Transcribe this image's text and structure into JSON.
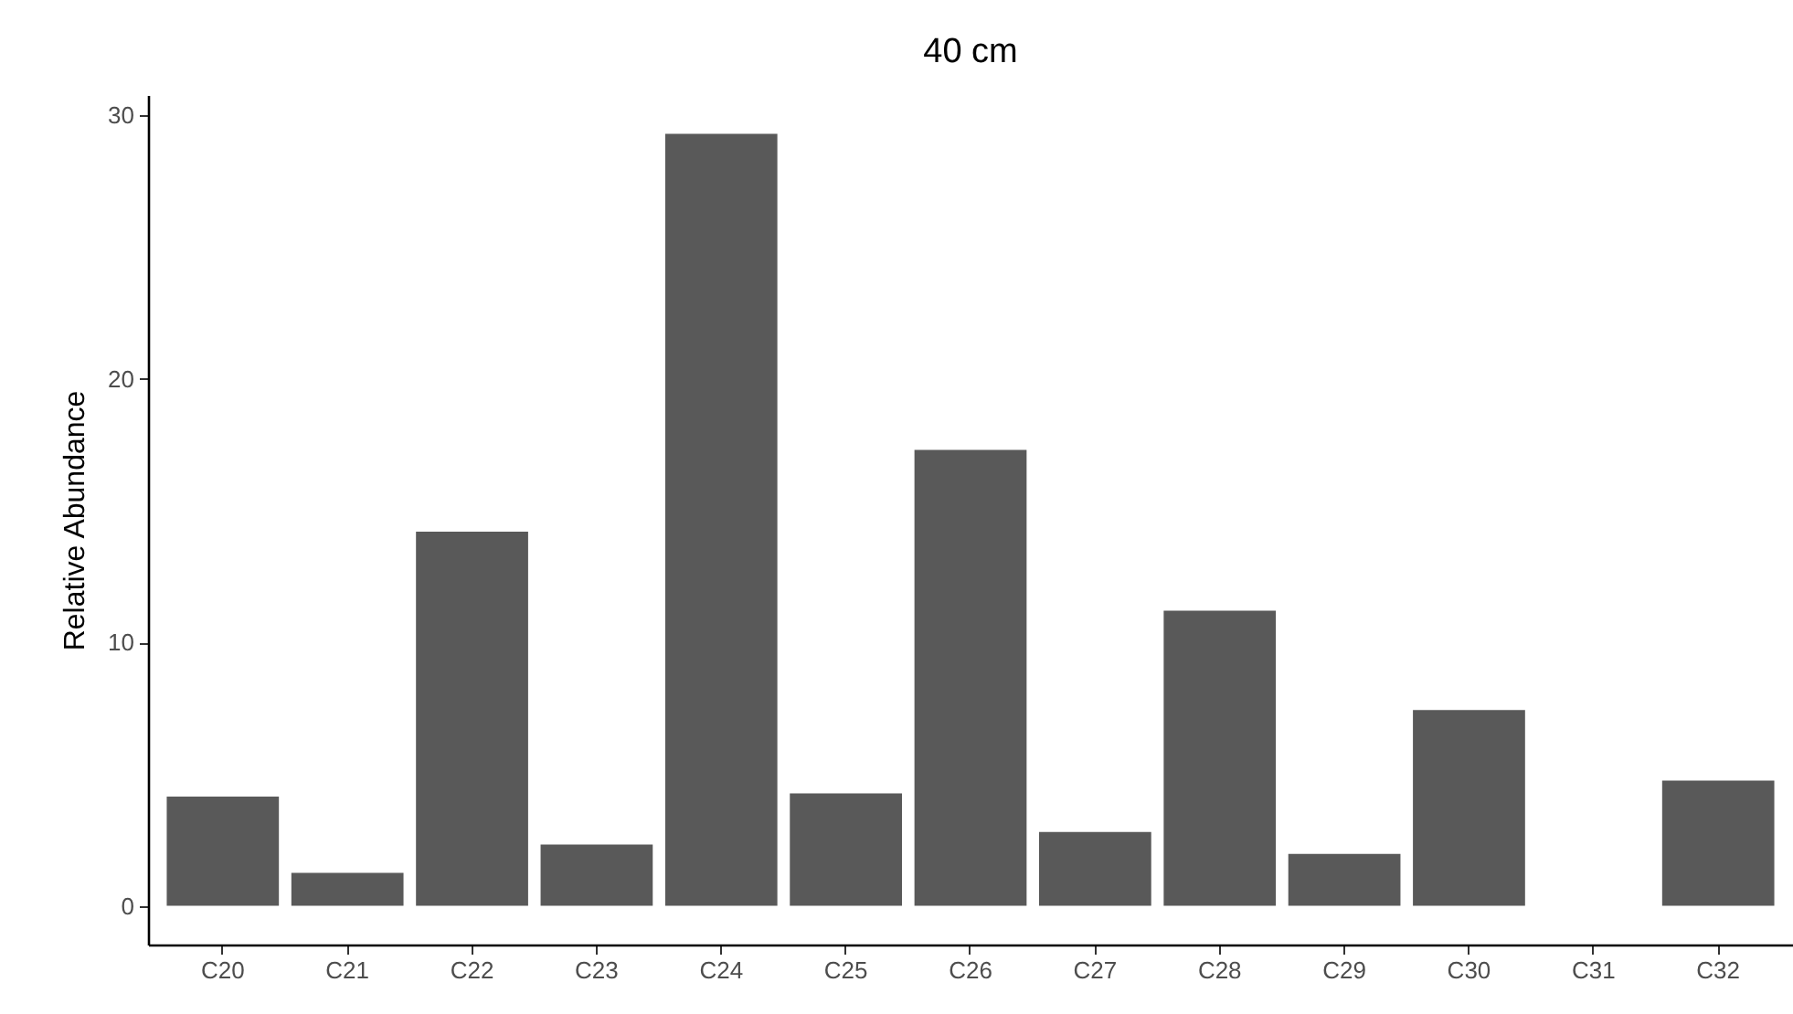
{
  "chart_data": {
    "type": "bar",
    "title": "40 cm",
    "ylabel": "Relative Abundance",
    "categories": [
      "C20",
      "C21",
      "C22",
      "C23",
      "C24",
      "C25",
      "C26",
      "C27",
      "C28",
      "C29",
      "C30",
      "C31",
      "C32"
    ],
    "values": [
      4.15,
      1.25,
      14.2,
      2.33,
      29.3,
      4.27,
      17.3,
      2.8,
      11.2,
      1.97,
      7.43,
      0,
      4.75
    ],
    "color": "#595959",
    "ylim": [
      -1.47,
      30.77
    ],
    "yticks": [
      0,
      10,
      20,
      30
    ],
    "grid": false
  }
}
